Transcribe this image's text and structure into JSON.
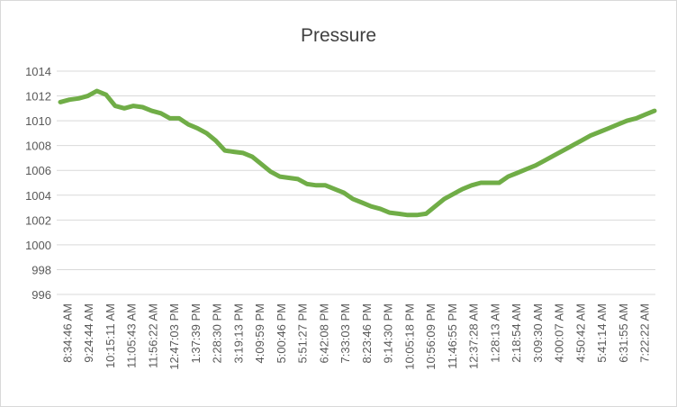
{
  "chart_data": {
    "type": "line",
    "title": "Pressure",
    "xlabel": "",
    "ylabel": "",
    "ylim": [
      996,
      1014
    ],
    "y_ticks": [
      996,
      998,
      1000,
      1002,
      1004,
      1006,
      1008,
      1010,
      1012,
      1014
    ],
    "grid": "horizontal",
    "legend": "none",
    "line_color": "#70ad47",
    "gridline_color": "#d9d9d9",
    "x_tick_labels": [
      "8:34:46 AM",
      "9:24:44 AM",
      "10:15:11 AM",
      "11:05:43 AM",
      "11:56:22 AM",
      "12:47:03 PM",
      "1:37:39 PM",
      "2:28:30 PM",
      "3:19:13 PM",
      "4:09:59 PM",
      "5:00:46 PM",
      "5:51:27 PM",
      "6:42:08 PM",
      "7:33:03 PM",
      "8:23:46 PM",
      "9:14:30 PM",
      "10:05:18 PM",
      "10:56:09 PM",
      "11:46:55 PM",
      "12:37:28 AM",
      "1:28:13 AM",
      "2:18:54 AM",
      "3:09:30 AM",
      "4:00:07 AM",
      "4:50:42 AM",
      "5:41:14 AM",
      "6:31:55 AM",
      "7:22:22 AM"
    ],
    "series": [
      {
        "values": [
          1011.5,
          1011.7,
          1011.8,
          1012.0,
          1012.4,
          1012.1,
          1011.2,
          1011.0,
          1011.2,
          1011.1,
          1010.8,
          1010.6,
          1010.2,
          1010.2,
          1009.7,
          1009.4,
          1009.0,
          1008.4,
          1007.6,
          1007.5,
          1007.4,
          1007.1,
          1006.5,
          1005.9,
          1005.5,
          1005.4,
          1005.3,
          1004.9,
          1004.8,
          1004.8,
          1004.5,
          1004.2,
          1003.7,
          1003.4,
          1003.1,
          1002.9,
          1002.6,
          1002.5,
          1002.4,
          1002.4,
          1002.5,
          1003.1,
          1003.7,
          1004.1,
          1004.5,
          1004.8,
          1005.0,
          1005.0,
          1005.0,
          1005.5,
          1005.8,
          1006.1,
          1006.4,
          1006.8,
          1007.2,
          1007.6,
          1008.0,
          1008.4,
          1008.8,
          1009.1,
          1009.4,
          1009.7,
          1010.0,
          1010.2,
          1010.5,
          1010.8
        ]
      }
    ]
  }
}
